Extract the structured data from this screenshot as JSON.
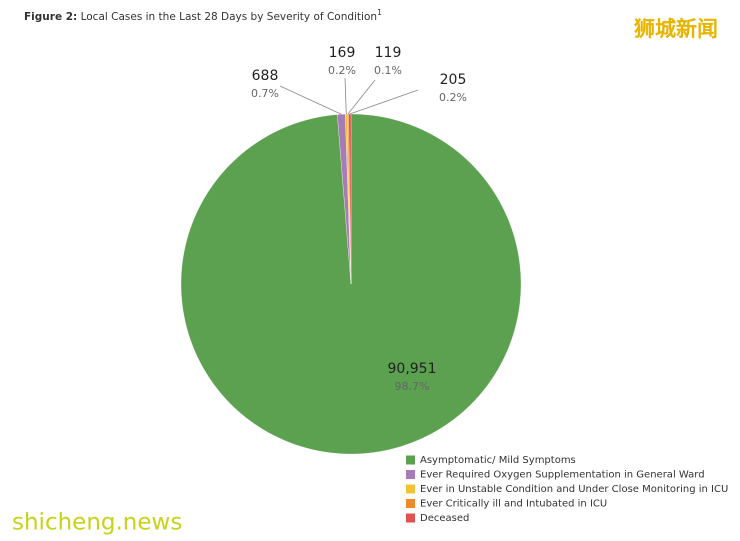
{
  "chart_data": {
    "type": "pie",
    "title_prefix": "Figure 2:",
    "title": "Local Cases in the Last 28 Days by Severity of Condition",
    "title_footnote": "1",
    "categories": [
      "Asymptomatic/ Mild Symptoms",
      "Ever Required Oxygen Supplementation in General Ward",
      "Ever in Unstable Condition and Under Close Monitoring in ICU",
      "Ever Critically ill and Intubated in ICU",
      "Deceased"
    ],
    "values": [
      90951,
      688,
      169,
      119,
      205
    ],
    "value_labels": [
      "90,951",
      "688",
      "169",
      "119",
      "205"
    ],
    "percent_labels": [
      "98.7%",
      "0.7%",
      "0.2%",
      "0.1%",
      "0.2%"
    ],
    "colors": [
      "#5ba150",
      "#a77bb5",
      "#f1c232",
      "#f0892a",
      "#e0514f"
    ],
    "legend": "bottom-right"
  },
  "watermarks": {
    "top": "狮城新闻",
    "bottom": "shicheng.news"
  }
}
